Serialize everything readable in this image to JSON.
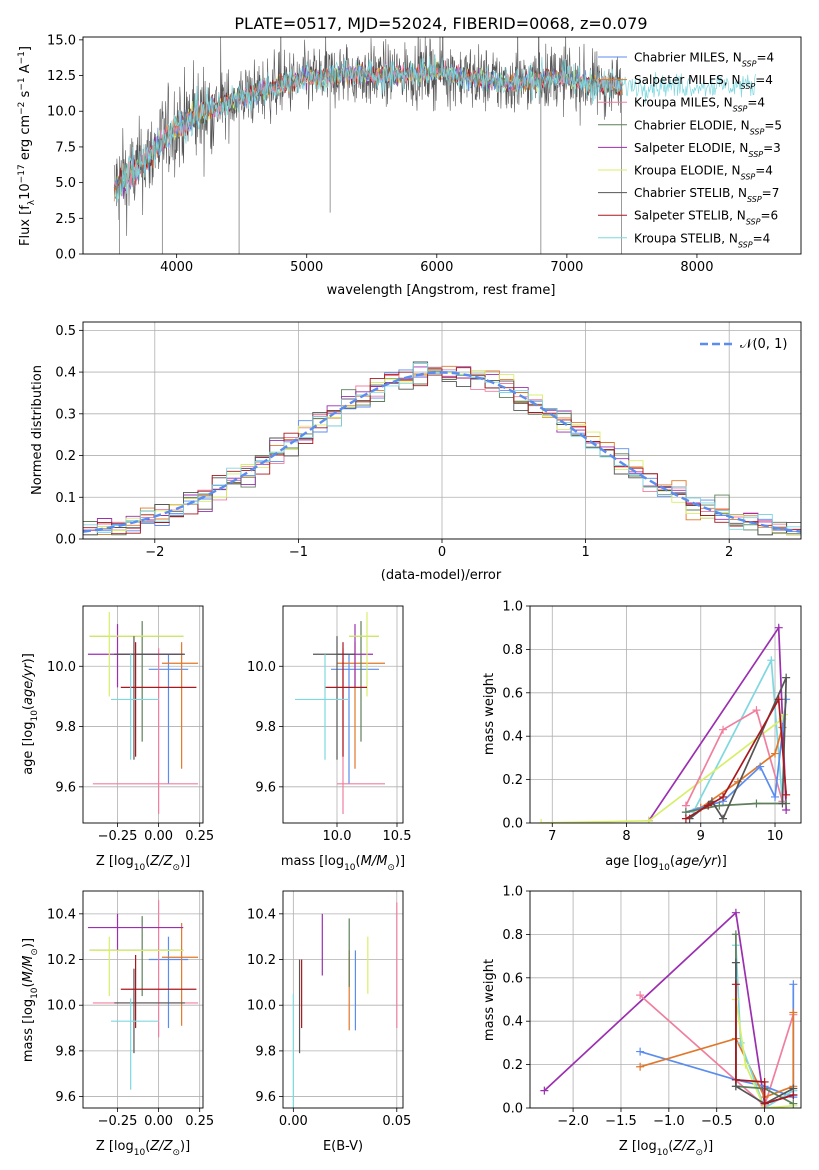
{
  "figure_title": "PLATE=0517, MJD=52024, FIBERID=0068, z=0.079",
  "models": [
    {
      "name": "Chabrier MILES",
      "nssp": "4",
      "color": "#5b8def"
    },
    {
      "name": "Salpeter MILES",
      "nssp": "4",
      "color": "#e0782a"
    },
    {
      "name": "Kroupa MILES",
      "nssp": "4",
      "color": "#f07f9f"
    },
    {
      "name": "Chabrier ELODIE",
      "nssp": "5",
      "color": "#5d7f5a"
    },
    {
      "name": "Salpeter ELODIE",
      "nssp": "3",
      "color": "#9b2fb0"
    },
    {
      "name": "Kroupa ELODIE",
      "nssp": "4",
      "color": "#d7ef6a"
    },
    {
      "name": "Chabrier STELIB",
      "nssp": "7",
      "color": "#555555"
    },
    {
      "name": "Salpeter STELIB",
      "nssp": "6",
      "color": "#a8191e"
    },
    {
      "name": "Kroupa STELIB",
      "nssp": "4",
      "color": "#7fd8e0"
    }
  ],
  "chart_data": [
    {
      "id": "spectrum",
      "type": "line",
      "xlabel": "wavelength [Angstrom, rest frame]",
      "ylabel": "Flux [f_λ 10^-17 erg cm^-2 s^-1 A^-1]",
      "xlim": [
        3280,
        8800
      ],
      "ylim": [
        0,
        15.2
      ],
      "xticks": [
        4000,
        5000,
        6000,
        7000,
        8000
      ],
      "yticks": [
        0.0,
        2.5,
        5.0,
        7.5,
        10.0,
        12.5,
        15.0
      ],
      "grid": false,
      "legend": "upper right",
      "continuum_knots": {
        "x": [
          3500,
          3700,
          3850,
          4000,
          4300,
          4700,
          5000,
          5300,
          5600,
          6000,
          6300,
          6600,
          6900,
          7200,
          7400
        ],
        "y": [
          4.5,
          6.0,
          7.5,
          9.0,
          10.3,
          11.6,
          12.3,
          12.6,
          12.5,
          12.8,
          12.3,
          12.0,
          12.4,
          11.9,
          11.8
        ]
      }
    },
    {
      "id": "residuals",
      "type": "histogram",
      "xlabel": "(data-model)/error",
      "ylabel": "Normed distribution",
      "xlim": [
        -2.5,
        2.5
      ],
      "ylim": [
        0,
        0.52
      ],
      "xticks": [
        -2,
        -1,
        0,
        1,
        2
      ],
      "yticks": [
        0.0,
        0.1,
        0.2,
        0.3,
        0.4,
        0.5
      ],
      "grid": true,
      "legend": "upper right",
      "reference_curve": {
        "name": "N(0,1)",
        "mean": 0,
        "sigma": 1,
        "style": "dashed",
        "color": "#5b8def"
      },
      "bin_edges": [
        -2.5,
        2.5
      ],
      "bins": 50
    },
    {
      "id": "age_vs_Z",
      "type": "errorbar",
      "xlabel": "Z [log10(Z/Z_sun)]",
      "ylabel": "age  [log10(age/yr)]",
      "xlim": [
        -0.46,
        0.27
      ],
      "ylim": [
        9.48,
        10.2
      ],
      "xticks": [
        -0.25,
        0.0,
        0.25
      ],
      "yticks": [
        9.6,
        9.8,
        10.0
      ],
      "points": [
        {
          "model": 0,
          "x": 0.06,
          "xerr": [
            0.12,
            0.12
          ],
          "y": 9.99,
          "yerr": [
            0.38,
            0.05
          ]
        },
        {
          "model": 1,
          "x": 0.14,
          "xerr": [
            0.12,
            0.1
          ],
          "y": 10.01,
          "yerr": [
            0.35,
            0.07
          ]
        },
        {
          "model": 2,
          "x": 0.0,
          "xerr": [
            0.4,
            0.24
          ],
          "y": 9.61,
          "yerr": [
            0.1,
            0.45
          ]
        },
        {
          "model": 3,
          "x": -0.1,
          "xerr": [
            0.32,
            0.25
          ],
          "y": 10.1,
          "yerr": [
            0.35,
            0.05
          ]
        },
        {
          "model": 4,
          "x": -0.25,
          "xerr": [
            0.18,
            0.4
          ],
          "y": 10.04,
          "yerr": [
            0.11,
            0.1
          ]
        },
        {
          "model": 5,
          "x": -0.3,
          "xerr": [
            0.12,
            0.45
          ],
          "y": 10.1,
          "yerr": [
            0.2,
            0.08
          ]
        },
        {
          "model": 6,
          "x": -0.15,
          "xerr": [
            0.12,
            0.31
          ],
          "y": 10.04,
          "yerr": [
            0.35,
            0.06
          ]
        },
        {
          "model": 7,
          "x": -0.14,
          "xerr": [
            0.09,
            0.37
          ],
          "y": 9.93,
          "yerr": [
            0.23,
            0.15
          ]
        },
        {
          "model": 8,
          "x": -0.17,
          "xerr": [
            0.12,
            0.17
          ],
          "y": 9.89,
          "yerr": [
            0.2,
            0.15
          ]
        }
      ]
    },
    {
      "id": "age_vs_mass",
      "type": "errorbar",
      "xlabel": "mass [log10(M/M_sun)]",
      "ylabel": "",
      "xlim": [
        9.55,
        10.55
      ],
      "ylim": [
        9.48,
        10.2
      ],
      "xticks": [
        10.0,
        10.5
      ],
      "yticks": [
        9.6,
        9.8,
        10.0
      ],
      "points": [
        {
          "model": 0,
          "x": 10.1,
          "xerr": [
            0.15,
            0.25
          ],
          "y": 9.99,
          "yerr": [
            0.38,
            0.05
          ]
        },
        {
          "model": 1,
          "x": 10.15,
          "xerr": [
            0.15,
            0.25
          ],
          "y": 10.01,
          "yerr": [
            0.35,
            0.07
          ]
        },
        {
          "model": 2,
          "x": 10.05,
          "xerr": [
            0.05,
            0.35
          ],
          "y": 9.61,
          "yerr": [
            0.1,
            0.45
          ]
        },
        {
          "model": 3,
          "x": 10.2,
          "xerr": [
            0.1,
            0.15
          ],
          "y": 10.1,
          "yerr": [
            0.35,
            0.05
          ]
        },
        {
          "model": 4,
          "x": 10.15,
          "xerr": [
            0.15,
            0.15
          ],
          "y": 10.04,
          "yerr": [
            0.11,
            0.1
          ]
        },
        {
          "model": 5,
          "x": 10.25,
          "xerr": [
            0.15,
            0.1
          ],
          "y": 10.1,
          "yerr": [
            0.2,
            0.08
          ]
        },
        {
          "model": 6,
          "x": 10.0,
          "xerr": [
            0.2,
            0.15
          ],
          "y": 10.04,
          "yerr": [
            0.35,
            0.06
          ]
        },
        {
          "model": 7,
          "x": 10.05,
          "xerr": [
            0.15,
            0.2
          ],
          "y": 9.93,
          "yerr": [
            0.23,
            0.15
          ]
        },
        {
          "model": 8,
          "x": 9.9,
          "xerr": [
            0.25,
            0.2
          ],
          "y": 9.89,
          "yerr": [
            0.2,
            0.15
          ]
        }
      ]
    },
    {
      "id": "weight_vs_age",
      "type": "line",
      "xlabel": "age  [log10(age/yr)]",
      "ylabel": "mass weight",
      "xlim": [
        6.7,
        10.35
      ],
      "ylim": [
        0,
        1.0
      ],
      "xticks": [
        7,
        8,
        9,
        10
      ],
      "yticks": [
        0.0,
        0.2,
        0.4,
        0.6,
        0.8,
        1.0
      ],
      "grid": true,
      "series": [
        {
          "model": 4,
          "x": [
            8.3,
            10.05,
            10.15
          ],
          "y": [
            0.01,
            0.9,
            0.06
          ]
        },
        {
          "model": 8,
          "x": [
            8.9,
            9.95,
            10.1
          ],
          "y": [
            0.05,
            0.75,
            0.1
          ]
        },
        {
          "model": 5,
          "x": [
            6.85,
            8.3,
            10.1,
            10.12
          ],
          "y": [
            0.0,
            0.01,
            0.48,
            0.5
          ]
        },
        {
          "model": 2,
          "x": [
            8.8,
            9.3,
            9.75,
            10.1
          ],
          "y": [
            0.08,
            0.43,
            0.52,
            0.1
          ]
        },
        {
          "model": 1,
          "x": [
            9.0,
            9.5,
            10.0,
            10.1
          ],
          "y": [
            0.07,
            0.19,
            0.32,
            0.44
          ]
        },
        {
          "model": 0,
          "x": [
            8.8,
            9.3,
            9.8,
            10.0,
            10.15
          ],
          "y": [
            0.05,
            0.1,
            0.26,
            0.12,
            0.57
          ]
        },
        {
          "model": 3,
          "x": [
            8.8,
            9.25,
            9.75,
            10.15
          ],
          "y": [
            0.05,
            0.08,
            0.09,
            0.09
          ]
        },
        {
          "model": 6,
          "x": [
            8.85,
            9.15,
            9.3,
            10.15,
            10.1
          ],
          "y": [
            0.02,
            0.1,
            0.02,
            0.67,
            0.09
          ]
        },
        {
          "model": 7,
          "x": [
            8.8,
            9.1,
            9.3,
            10.05,
            10.15
          ],
          "y": [
            0.02,
            0.08,
            0.12,
            0.57,
            0.13
          ]
        }
      ]
    },
    {
      "id": "mass_vs_Z",
      "type": "errorbar",
      "xlabel": "Z [log10(Z/Z_sun)]",
      "ylabel": "mass [log10(M/M_sun)]",
      "xlim": [
        -0.46,
        0.27
      ],
      "ylim": [
        9.55,
        10.5
      ],
      "xticks": [
        -0.25,
        0.0,
        0.25
      ],
      "yticks": [
        9.6,
        9.8,
        10.0,
        10.2,
        10.4
      ],
      "points": [
        {
          "model": 0,
          "x": 0.06,
          "xerr": [
            0.12,
            0.12
          ],
          "y": 10.2,
          "yerr": [
            0.3,
            0.1
          ]
        },
        {
          "model": 1,
          "x": 0.14,
          "xerr": [
            0.12,
            0.1
          ],
          "y": 10.21,
          "yerr": [
            0.3,
            0.15
          ]
        },
        {
          "model": 2,
          "x": 0.0,
          "xerr": [
            0.4,
            0.24
          ],
          "y": 10.01,
          "yerr": [
            0.15,
            0.45
          ]
        },
        {
          "model": 3,
          "x": -0.1,
          "xerr": [
            0.32,
            0.25
          ],
          "y": 10.24,
          "yerr": [
            0.2,
            0.15
          ]
        },
        {
          "model": 4,
          "x": -0.25,
          "xerr": [
            0.18,
            0.4
          ],
          "y": 10.34,
          "yerr": [
            0.1,
            0.06
          ]
        },
        {
          "model": 5,
          "x": -0.3,
          "xerr": [
            0.12,
            0.45
          ],
          "y": 10.24,
          "yerr": [
            0.2,
            0.06
          ]
        },
        {
          "model": 6,
          "x": -0.15,
          "xerr": [
            0.12,
            0.31
          ],
          "y": 10.01,
          "yerr": [
            0.22,
            0.15
          ]
        },
        {
          "model": 7,
          "x": -0.14,
          "xerr": [
            0.09,
            0.37
          ],
          "y": 10.07,
          "yerr": [
            0.17,
            0.15
          ]
        },
        {
          "model": 8,
          "x": -0.17,
          "xerr": [
            0.12,
            0.17
          ],
          "y": 9.93,
          "yerr": [
            0.3,
            0.1
          ]
        }
      ]
    },
    {
      "id": "mass_vs_ebv",
      "type": "errorbar",
      "xlabel": "E(B-V)",
      "ylabel": "",
      "xlim": [
        -0.005,
        0.053
      ],
      "ylim": [
        9.55,
        10.5
      ],
      "xticks": [
        0.0,
        0.05
      ],
      "yticks": [
        9.6,
        9.8,
        10.0,
        10.2,
        10.4
      ],
      "points": [
        {
          "model": 0,
          "x": 0.03,
          "y": 10.14,
          "yerr": [
            0.25,
            0.1
          ]
        },
        {
          "model": 1,
          "x": 0.027,
          "y": 10.14,
          "yerr": [
            0.25,
            0.1
          ]
        },
        {
          "model": 2,
          "x": 0.05,
          "y": 10.2,
          "yerr": [
            0.3,
            0.25
          ]
        },
        {
          "model": 3,
          "x": 0.027,
          "y": 10.21,
          "yerr": [
            0.13,
            0.17
          ]
        },
        {
          "model": 4,
          "x": 0.014,
          "y": 10.28,
          "yerr": [
            0.15,
            0.12
          ]
        },
        {
          "model": 5,
          "x": 0.036,
          "y": 10.18,
          "yerr": [
            0.13,
            0.12
          ]
        },
        {
          "model": 6,
          "x": 0.003,
          "y": 10.0,
          "yerr": [
            0.21,
            0.2
          ]
        },
        {
          "model": 7,
          "x": 0.004,
          "y": 10.05,
          "yerr": [
            0.15,
            0.15
          ]
        },
        {
          "model": 8,
          "x": 0.0,
          "y": 9.8,
          "yerr": [
            0.25,
            0.25
          ]
        }
      ]
    },
    {
      "id": "weight_vs_Z",
      "type": "line",
      "xlabel": "Z [log10(Z/Z_sun)]",
      "ylabel": "mass weight",
      "xlim": [
        -2.45,
        0.38
      ],
      "ylim": [
        0,
        1.0
      ],
      "xticks": [
        -2.0,
        -1.5,
        -1.0,
        -0.5,
        0.0
      ],
      "yticks": [
        0.0,
        0.2,
        0.4,
        0.6,
        0.8,
        1.0
      ],
      "grid": true,
      "series": [
        {
          "model": 4,
          "x": [
            -2.3,
            -0.3,
            0.0,
            0.3
          ],
          "y": [
            0.08,
            0.9,
            0.02,
            0.06
          ]
        },
        {
          "model": 2,
          "x": [
            -1.3,
            0.0,
            0.3
          ],
          "y": [
            0.52,
            0.01,
            0.43
          ]
        },
        {
          "model": 0,
          "x": [
            -1.3,
            -0.3,
            0.0,
            0.3,
            0.3
          ],
          "y": [
            0.26,
            0.13,
            0.1,
            0.05,
            0.57
          ]
        },
        {
          "model": 1,
          "x": [
            -1.3,
            -0.3,
            0.0,
            0.3,
            0.3
          ],
          "y": [
            0.19,
            0.32,
            0.05,
            0.1,
            0.44
          ]
        },
        {
          "model": 8,
          "x": [
            -0.3,
            -0.25,
            0.0,
            0.3
          ],
          "y": [
            0.75,
            0.3,
            0.0,
            0.08
          ]
        },
        {
          "model": 5,
          "x": [
            -0.3,
            -0.2,
            0.0,
            0.3
          ],
          "y": [
            0.5,
            0.2,
            0.0,
            0.01
          ]
        },
        {
          "model": 3,
          "x": [
            -0.3,
            -0.3,
            0.0,
            0.3
          ],
          "y": [
            0.8,
            0.1,
            0.09,
            0.02
          ]
        },
        {
          "model": 6,
          "x": [
            -0.3,
            -0.3,
            0.0,
            0.3
          ],
          "y": [
            0.67,
            0.1,
            0.02,
            0.09
          ]
        },
        {
          "model": 7,
          "x": [
            -0.3,
            -0.3,
            0.0,
            0.0,
            0.3
          ],
          "y": [
            0.57,
            0.13,
            0.12,
            0.02,
            0.06
          ]
        }
      ]
    }
  ]
}
